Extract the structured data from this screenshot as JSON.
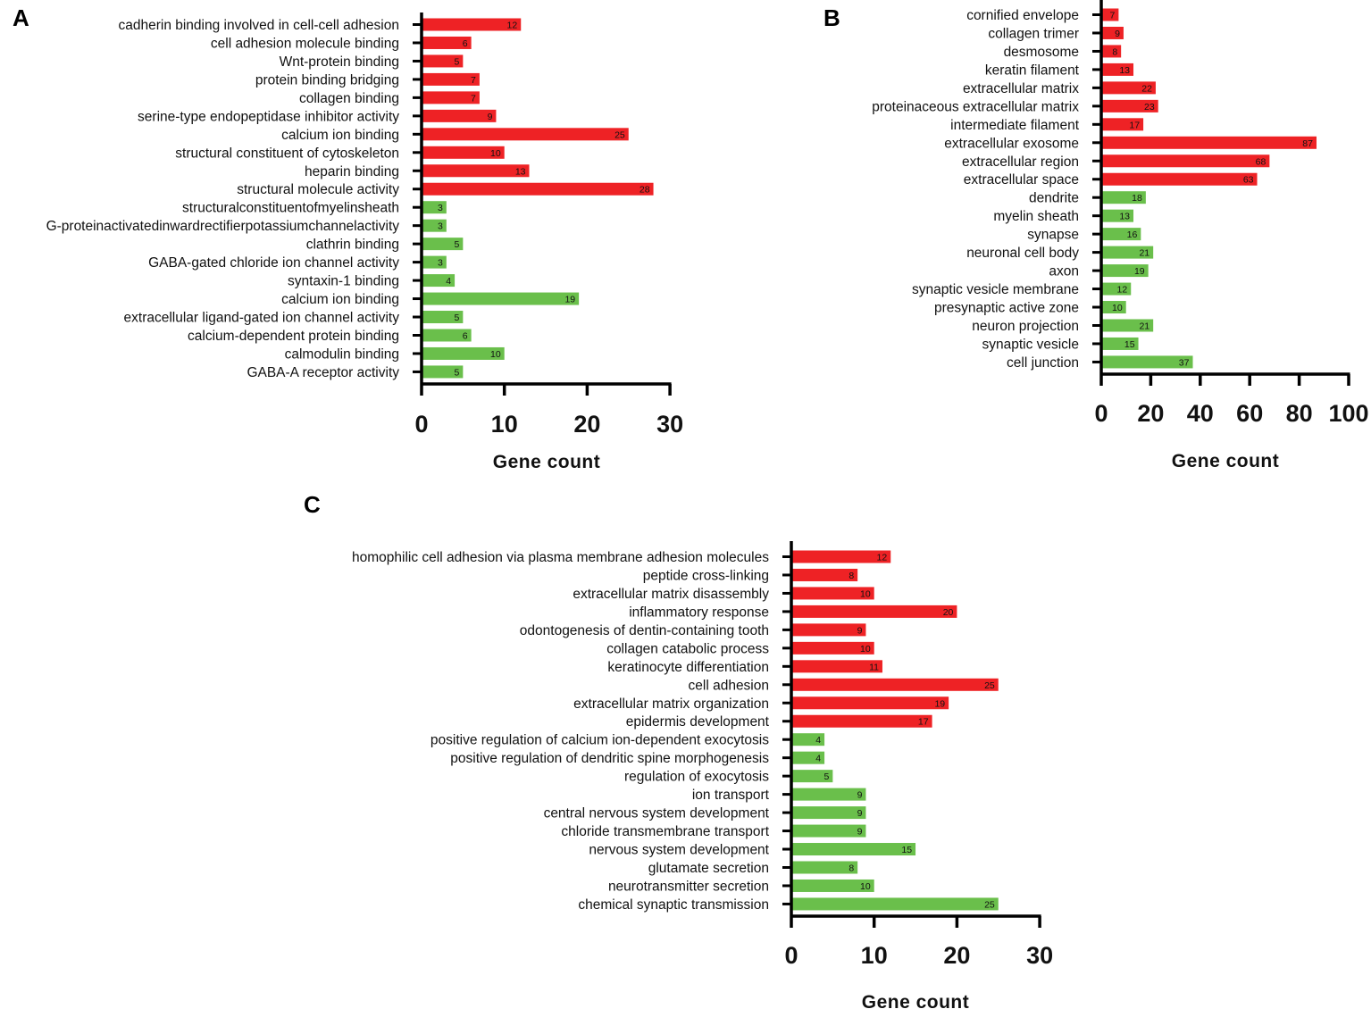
{
  "colors": {
    "up": "#ee2225",
    "down": "#6abf4b",
    "axis": "#000000"
  },
  "chart_data": [
    {
      "type": "bar",
      "orientation": "horizontal",
      "panel": "A",
      "xlabel": "Gene count",
      "xlim": [
        0,
        30
      ],
      "xticks": [
        "0",
        "10",
        "20",
        "30"
      ],
      "categories": [
        "cadherin binding involved in cell-cell adhesion",
        "cell adhesion molecule binding",
        "Wnt-protein binding",
        "protein binding bridging",
        "collagen binding",
        "serine-type endopeptidase inhibitor activity",
        "calcium ion binding",
        "structural constituent of cytoskeleton",
        "heparin binding",
        "structural molecule activity",
        "structuralconstituentofmyelinsheath",
        "G-proteinactivatedinwardrectifierpotassiumchannelactivity",
        "clathrin binding",
        "GABA-gated chloride ion channel activity",
        "syntaxin-1 binding",
        "calcium ion binding",
        "extracellular ligand-gated ion channel activity",
        "calcium-dependent protein binding",
        "calmodulin binding",
        "GABA-A receptor activity"
      ],
      "values": [
        12,
        6,
        5,
        7,
        7,
        9,
        25,
        10,
        13,
        28,
        3,
        3,
        5,
        3,
        4,
        19,
        5,
        6,
        10,
        5
      ],
      "groups": [
        "up",
        "up",
        "up",
        "up",
        "up",
        "up",
        "up",
        "up",
        "up",
        "up",
        "down",
        "down",
        "down",
        "down",
        "down",
        "down",
        "down",
        "down",
        "down",
        "down"
      ]
    },
    {
      "type": "bar",
      "orientation": "horizontal",
      "panel": "B",
      "xlabel": "Gene count",
      "xlim": [
        0,
        100
      ],
      "xticks": [
        "0",
        "20",
        "40",
        "60",
        "80",
        "100"
      ],
      "categories": [
        "cornified envelope",
        "collagen trimer",
        "desmosome",
        "keratin filament",
        "extracellular matrix",
        "proteinaceous extracellular matrix",
        "intermediate filament",
        "extracellular exosome",
        "extracellular region",
        "extracellular space",
        "dendrite",
        "myelin sheath",
        "synapse",
        "neuronal cell body",
        "axon",
        "synaptic vesicle membrane",
        "presynaptic active zone",
        "neuron projection",
        "synaptic vesicle",
        "cell junction"
      ],
      "values": [
        7,
        9,
        8,
        13,
        22,
        23,
        17,
        87,
        68,
        63,
        18,
        13,
        16,
        21,
        19,
        12,
        10,
        21,
        15,
        37
      ],
      "groups": [
        "up",
        "up",
        "up",
        "up",
        "up",
        "up",
        "up",
        "up",
        "up",
        "up",
        "down",
        "down",
        "down",
        "down",
        "down",
        "down",
        "down",
        "down",
        "down",
        "down"
      ]
    },
    {
      "type": "bar",
      "orientation": "horizontal",
      "panel": "C",
      "xlabel": "Gene count",
      "xlim": [
        0,
        30
      ],
      "xticks": [
        "0",
        "10",
        "20",
        "30"
      ],
      "categories": [
        "homophilic cell adhesion via plasma membrane adhesion molecules",
        "peptide cross-linking",
        "extracellular matrix disassembly",
        "inflammatory response",
        "odontogenesis of dentin-containing tooth",
        "collagen catabolic process",
        "keratinocyte differentiation",
        "cell adhesion",
        "extracellular matrix organization",
        "epidermis development",
        "positive regulation of calcium ion-dependent exocytosis",
        "positive regulation of dendritic spine morphogenesis",
        "regulation of exocytosis",
        "ion transport",
        "central nervous system development",
        "chloride transmembrane transport",
        "nervous system development",
        "glutamate secretion",
        "neurotransmitter secretion",
        "chemical synaptic transmission"
      ],
      "values": [
        12,
        8,
        10,
        20,
        9,
        10,
        11,
        25,
        19,
        17,
        4,
        4,
        5,
        9,
        9,
        9,
        15,
        8,
        10,
        25
      ],
      "groups": [
        "up",
        "up",
        "up",
        "up",
        "up",
        "up",
        "up",
        "up",
        "up",
        "up",
        "down",
        "down",
        "down",
        "down",
        "down",
        "down",
        "down",
        "down",
        "down",
        "down"
      ]
    }
  ]
}
